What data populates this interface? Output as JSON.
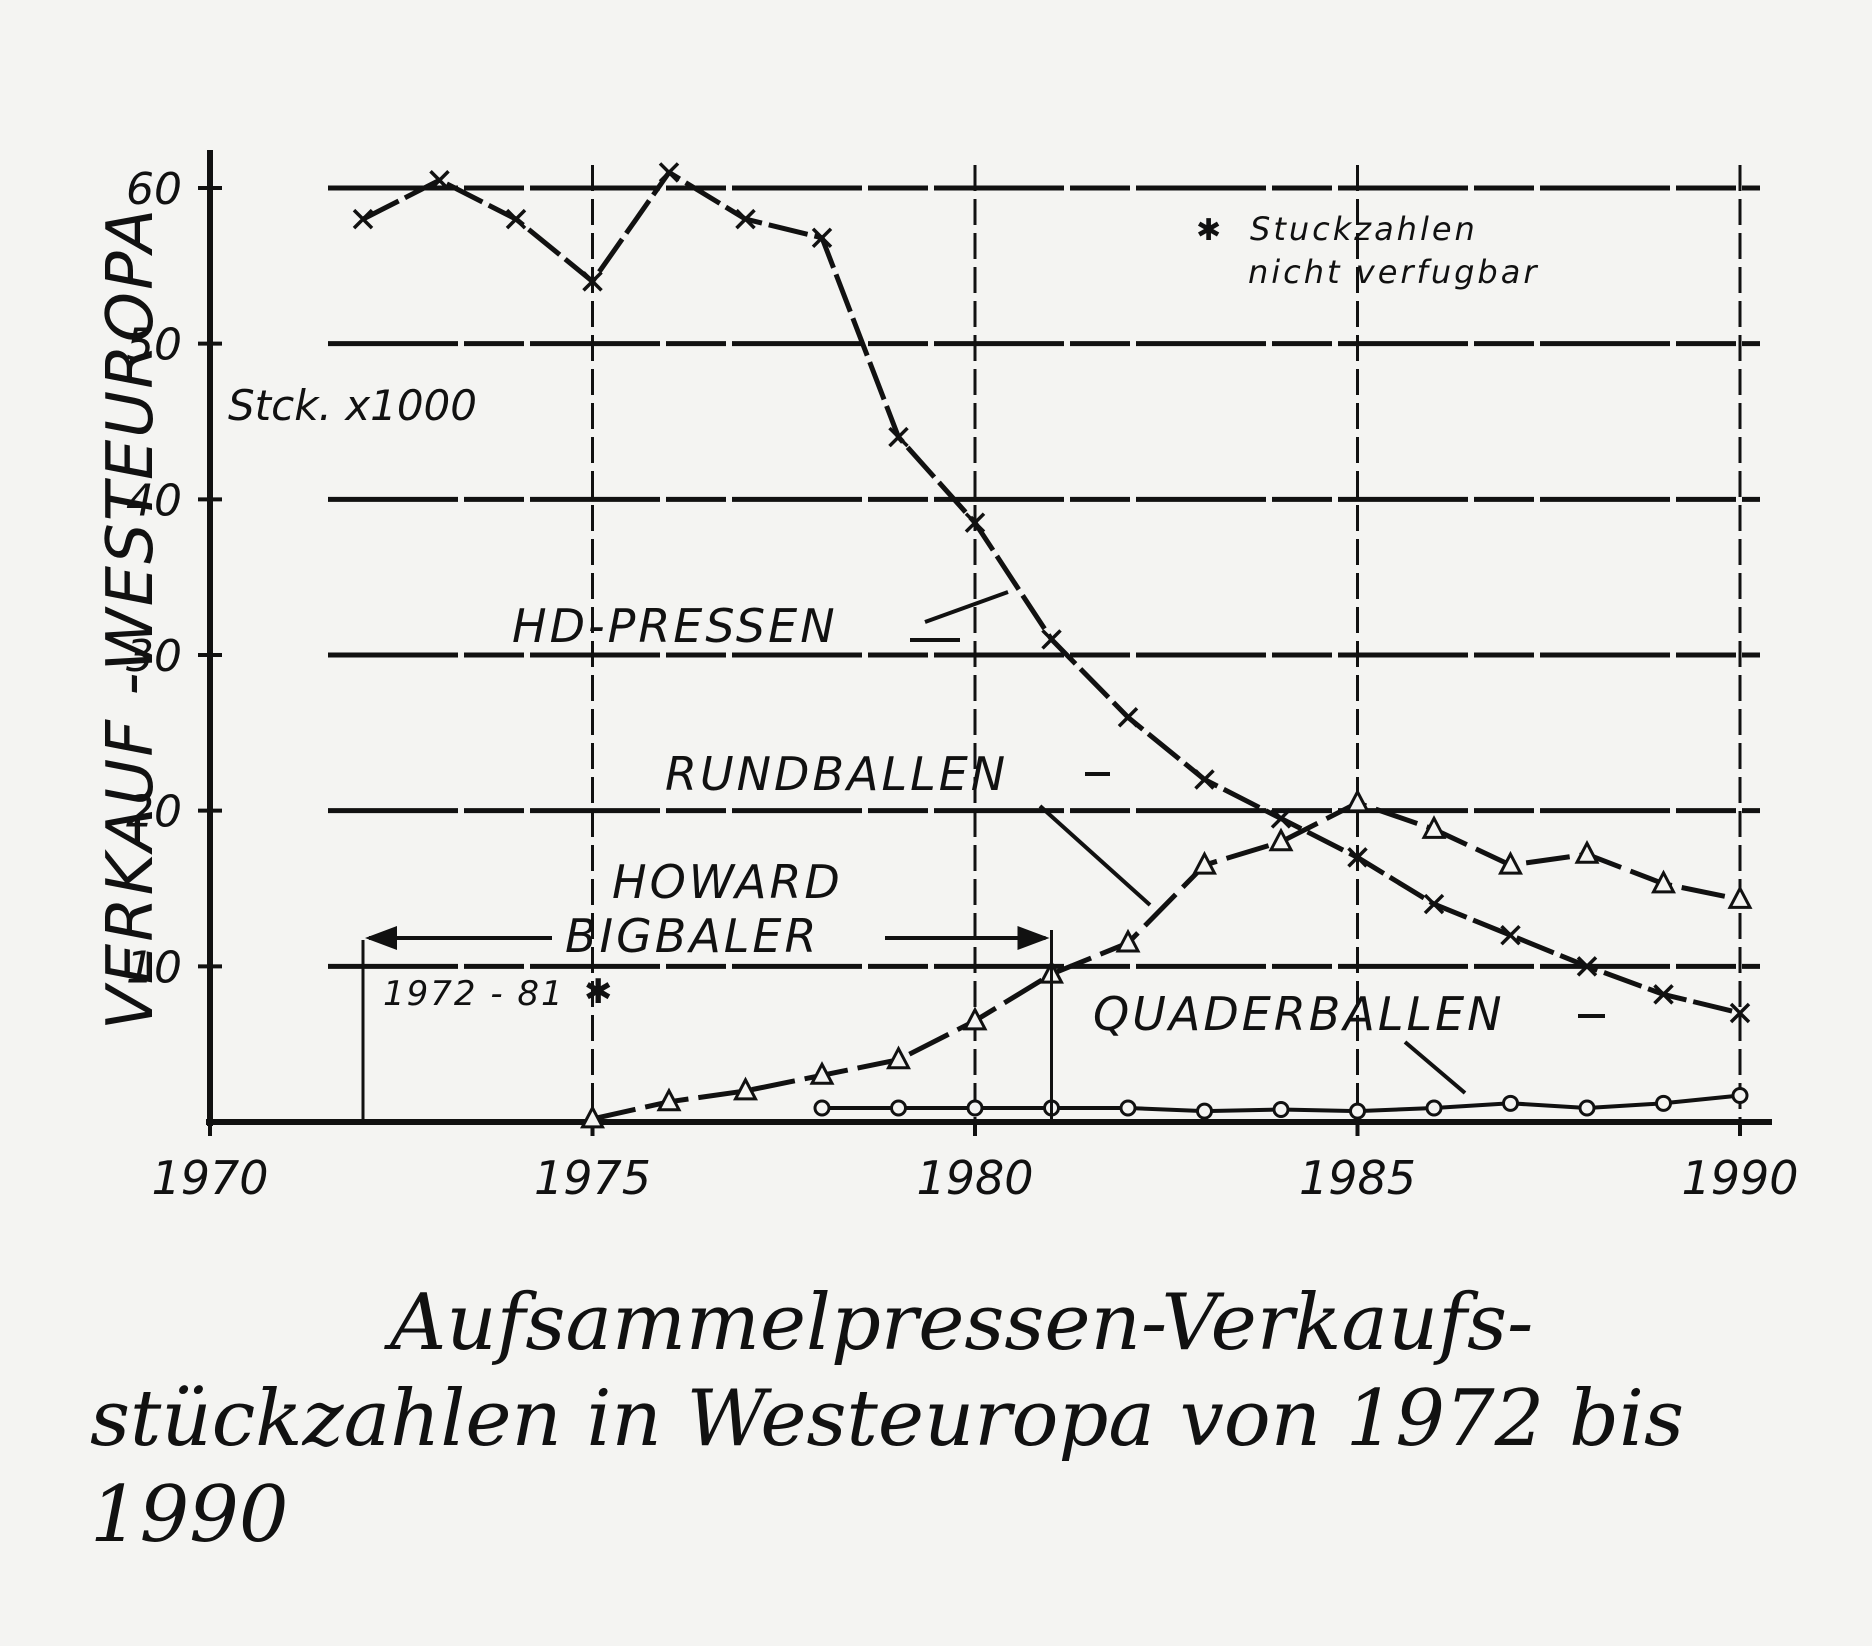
{
  "chart_data": {
    "type": "line",
    "ylabel": "VERKAUF -WESTEUROPA",
    "yunit": "Stck. x1000",
    "xlim": [
      1970,
      1990
    ],
    "ylim": [
      0,
      60
    ],
    "x_ticks": [
      "1970",
      "1975",
      "1980",
      "1985",
      "1990"
    ],
    "y_ticks": [
      "10",
      "20",
      "30",
      "40",
      "50",
      "60"
    ],
    "grid": true,
    "series": [
      {
        "name": "HD-PRESSEN",
        "marker": "x",
        "x": [
          1972,
          1973,
          1974,
          1975,
          1976,
          1977,
          1978,
          1979,
          1980,
          1981,
          1982,
          1983,
          1984,
          1985,
          1986,
          1987,
          1988,
          1989,
          1990
        ],
        "y": [
          58,
          60.5,
          58,
          54,
          61,
          58,
          56.8,
          44,
          38.5,
          31,
          26,
          22,
          19.5,
          17,
          14,
          12,
          10,
          8.2,
          7
        ]
      },
      {
        "name": "RUNDBALLEN",
        "marker": "triangle",
        "x": [
          1975,
          1976,
          1977,
          1978,
          1979,
          1980,
          1981,
          1982,
          1983,
          1984,
          1985,
          1986,
          1987,
          1988,
          1989,
          1990
        ],
        "y": [
          0.2,
          1.3,
          2,
          3,
          4,
          6.5,
          9.5,
          11.5,
          16.5,
          18,
          20.5,
          18.8,
          16.5,
          17.2,
          15.3,
          14.3
        ]
      },
      {
        "name": "QUADERBALLEN",
        "marker": "circle",
        "x": [
          1978,
          1979,
          1980,
          1981,
          1982,
          1983,
          1984,
          1985,
          1986,
          1987,
          1988,
          1989,
          1990
        ],
        "y": [
          0.9,
          0.9,
          0.9,
          0.9,
          0.9,
          0.7,
          0.8,
          0.7,
          0.9,
          1.2,
          0.9,
          1.2,
          1.7
        ]
      }
    ],
    "annotations": {
      "howard_line1": "HOWARD",
      "howard_line2": "BIGBALER",
      "howard_range": "1972 - 81",
      "howard_star": "✱",
      "note_star": "✱",
      "note_line1": "Stuckzahlen",
      "note_line2": "nicht verfugbar"
    }
  },
  "caption": {
    "line1": "Aufsammelpressen-Verkaufs-",
    "line2": "stückzahlen in Westeuropa von 1972 bis",
    "line3": "1990"
  }
}
